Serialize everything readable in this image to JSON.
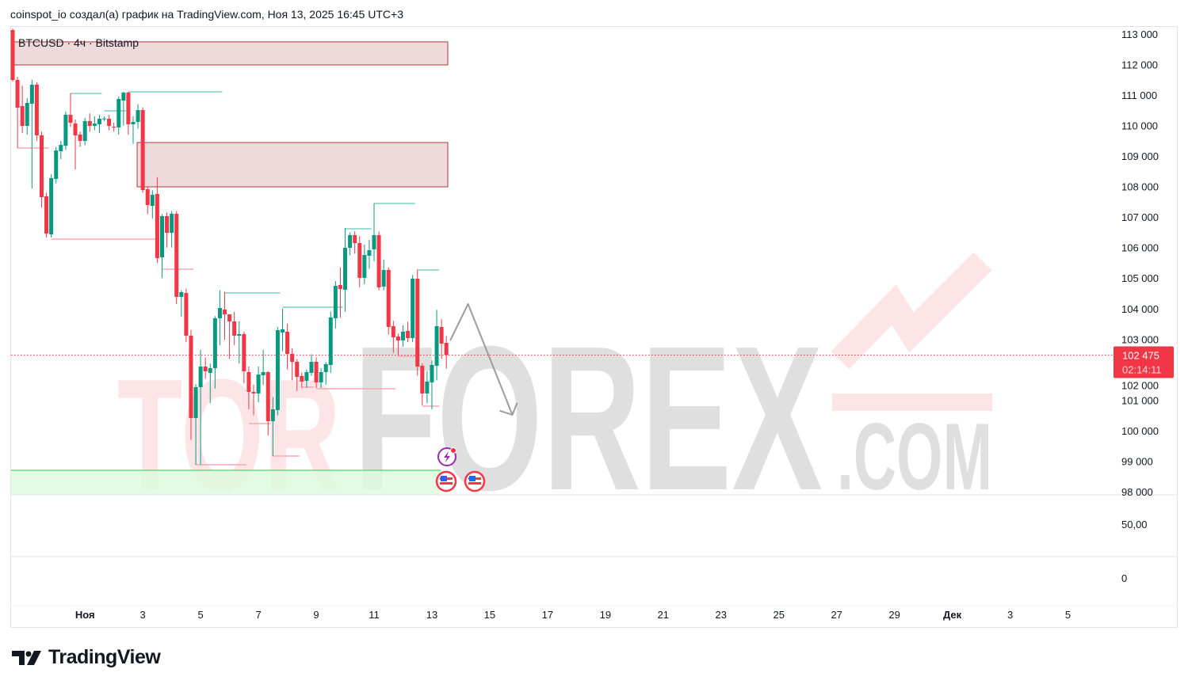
{
  "header": {
    "text": "coinspot_io создал(а) график на TradingView.com, Ноя 13, 2025 16:45 UTC+3"
  },
  "footer": {
    "brand": "TradingView"
  },
  "watermark": {
    "text_left": "TOR",
    "text_right": "FOREX",
    "suffix": ".COM"
  },
  "colors": {
    "up": "#089981",
    "down": "#f23645",
    "zone_fill": "#efdadb",
    "zone_border": "#b2393f",
    "support_line": "#4cd964",
    "support_fill": "#dcfadc",
    "arrow": "#9b9b9b",
    "price_badge": "#f23645"
  },
  "chart_data": {
    "type": "candlestick",
    "title": "BTCUSD · 4ч · Bitstamp",
    "symbol": "BTCUSD",
    "interval": "4ч",
    "exchange": "Bitstamp",
    "ylim": [
      98000,
      113000
    ],
    "y_ticks": [
      "113 000",
      "112 000",
      "111 000",
      "110 000",
      "109 000",
      "108 000",
      "107 000",
      "106 000",
      "105 000",
      "104 000",
      "103 000",
      "102 000",
      "101 000",
      "100 000",
      "99 000",
      "98 000"
    ],
    "x_ticks": [
      {
        "label": "Ноя",
        "bold": true
      },
      {
        "label": "3"
      },
      {
        "label": "5"
      },
      {
        "label": "7"
      },
      {
        "label": "9"
      },
      {
        "label": "11"
      },
      {
        "label": "13"
      },
      {
        "label": "15"
      },
      {
        "label": "17"
      },
      {
        "label": "19"
      },
      {
        "label": "21"
      },
      {
        "label": "23"
      },
      {
        "label": "25"
      },
      {
        "label": "27"
      },
      {
        "label": "29"
      },
      {
        "label": "Дек",
        "bold": true
      },
      {
        "label": "3"
      },
      {
        "label": "5"
      }
    ],
    "last_price": {
      "value": "102 475",
      "countdown": "02:14:11",
      "price": 102475
    },
    "lower_pane_ticks": [
      "50,00",
      "0"
    ],
    "candles_ohlc": [
      [
        113130,
        113180,
        111440,
        111495
      ],
      [
        111495,
        111600,
        109263,
        110586
      ],
      [
        110638,
        111300,
        109756,
        109989
      ],
      [
        109989,
        110900,
        109700,
        110742
      ],
      [
        110716,
        111500,
        107939,
        111339
      ],
      [
        111339,
        111417,
        109500,
        109678
      ],
      [
        109678,
        109800,
        107316,
        107653
      ],
      [
        107679,
        107800,
        106330,
        106460
      ],
      [
        106434,
        108400,
        106330,
        108277
      ],
      [
        108251,
        109300,
        108100,
        109185
      ],
      [
        109159,
        109500,
        108900,
        109367
      ],
      [
        109341,
        110457,
        109200,
        110353
      ],
      [
        110353,
        111054,
        109950,
        110093
      ],
      [
        110067,
        110200,
        108562,
        109678
      ],
      [
        109704,
        109800,
        109300,
        109496
      ],
      [
        109496,
        110250,
        109350,
        110145
      ],
      [
        110145,
        110400,
        109800,
        109989
      ],
      [
        109989,
        110300,
        109850,
        110067
      ],
      [
        110041,
        110350,
        109750,
        110223
      ],
      [
        110223,
        110300,
        110150,
        110230
      ],
      [
        110223,
        110350,
        109850,
        109989
      ],
      [
        109963,
        110100,
        109800,
        109938
      ],
      [
        109938,
        110950,
        109700,
        110872
      ],
      [
        110819,
        111110,
        110000,
        111080
      ],
      [
        111080,
        111110,
        109700,
        110041
      ],
      [
        110041,
        110300,
        109400,
        110119
      ],
      [
        110119,
        110700,
        109900,
        110508
      ],
      [
        110508,
        110600,
        107800,
        107887
      ],
      [
        107913,
        108000,
        107100,
        107394
      ],
      [
        107368,
        107880,
        106950,
        107731
      ],
      [
        107757,
        108310,
        105500,
        105655
      ],
      [
        105681,
        107100,
        105000,
        107031
      ],
      [
        107031,
        107150,
        106000,
        106486
      ],
      [
        106486,
        107200,
        106000,
        107108
      ],
      [
        107108,
        107200,
        104150,
        104384
      ],
      [
        104384,
        104600,
        103730,
        104539
      ],
      [
        104513,
        104650,
        102900,
        103112
      ],
      [
        103112,
        103300,
        99700,
        100412
      ],
      [
        100412,
        101520,
        98880,
        101425
      ],
      [
        101425,
        102650,
        98880,
        102100
      ],
      [
        102100,
        102400,
        101700,
        101944
      ],
      [
        101892,
        102200,
        100900,
        102048
      ],
      [
        102048,
        103750,
        101380,
        103683
      ],
      [
        103683,
        104600,
        102800,
        104020
      ],
      [
        103968,
        104550,
        102980,
        103813
      ],
      [
        103813,
        103750,
        102350,
        103579
      ],
      [
        103579,
        103900,
        102800,
        103112
      ],
      [
        103112,
        103580,
        102200,
        103164
      ],
      [
        103164,
        103250,
        101550,
        101944
      ],
      [
        101918,
        102100,
        100700,
        101269
      ],
      [
        101269,
        101500,
        100500,
        101217
      ],
      [
        101217,
        102100,
        100930,
        101840
      ],
      [
        101814,
        102650,
        101500,
        101918
      ],
      [
        101918,
        101950,
        99840,
        100309
      ],
      [
        100309,
        101100,
        99167,
        100698
      ],
      [
        100672,
        103400,
        100500,
        103293
      ],
      [
        103216,
        104000,
        102600,
        103319
      ],
      [
        103242,
        103500,
        102000,
        102515
      ],
      [
        102515,
        102700,
        101650,
        102255
      ],
      [
        102255,
        102350,
        101300,
        101762
      ],
      [
        101788,
        101900,
        101400,
        101607
      ],
      [
        101632,
        102000,
        101400,
        101918
      ],
      [
        101892,
        102500,
        101800,
        102255
      ],
      [
        102255,
        102400,
        101400,
        101581
      ],
      [
        101581,
        102050,
        101400,
        101918
      ],
      [
        101918,
        102250,
        101500,
        102177
      ],
      [
        102152,
        103900,
        101900,
        103709
      ],
      [
        103683,
        104900,
        103350,
        104747
      ],
      [
        104773,
        105350,
        103700,
        104643
      ],
      [
        104617,
        106640,
        103900,
        105993
      ],
      [
        105993,
        106500,
        105750,
        106408
      ],
      [
        106408,
        106530,
        105800,
        106148
      ],
      [
        106148,
        106380,
        104700,
        105006
      ],
      [
        105006,
        106100,
        104800,
        105759
      ],
      [
        105733,
        106250,
        105300,
        105915
      ],
      [
        105941,
        107450,
        105550,
        106408
      ],
      [
        106408,
        106530,
        104600,
        104695
      ],
      [
        104721,
        105600,
        104600,
        105266
      ],
      [
        105266,
        105350,
        103150,
        103397
      ],
      [
        103423,
        103600,
        102550,
        103060
      ],
      [
        103086,
        103180,
        102450,
        102956
      ],
      [
        102956,
        103450,
        102750,
        103242
      ],
      [
        103268,
        103560,
        102900,
        103034
      ],
      [
        103034,
        105100,
        102900,
        104980
      ],
      [
        104980,
        105280,
        101800,
        102100
      ],
      [
        102126,
        102200,
        100830,
        101217
      ],
      [
        101217,
        101950,
        100900,
        101607
      ],
      [
        101581,
        102300,
        100700,
        102152
      ],
      [
        102126,
        103960,
        101650,
        103423
      ],
      [
        103397,
        103650,
        102350,
        102852
      ],
      [
        102878,
        103100,
        102030,
        102475
      ]
    ],
    "zones": [
      {
        "top": 112743,
        "bottom": 111988,
        "from_candle": 0
      },
      {
        "top": 109444,
        "bottom": 107991,
        "from_candle": 26
      }
    ],
    "support_zone": {
      "top": 98700,
      "bottom": 97900
    },
    "swing_highs": [
      {
        "price": 111054,
        "from": 12,
        "to": 18
      },
      {
        "price": 110483,
        "from": 19,
        "to": 23
      },
      {
        "price": 111105,
        "from": 24,
        "to": 43
      },
      {
        "price": 104513,
        "from": 44,
        "to": 55
      },
      {
        "price": 104046,
        "from": 56,
        "to": 68
      },
      {
        "price": 106616,
        "from": 69,
        "to": 74
      },
      {
        "price": 107446,
        "from": 75,
        "to": 83
      },
      {
        "price": 105266,
        "from": 84,
        "to": 88
      }
    ],
    "swing_lows": [
      {
        "price": 109263,
        "from": 1,
        "to": 7
      },
      {
        "price": 106278,
        "from": 8,
        "to": 30
      },
      {
        "price": 105292,
        "from": 31,
        "to": 37
      },
      {
        "price": 98882,
        "from": 38,
        "to": 48
      },
      {
        "price": 100231,
        "from": 49,
        "to": 53
      },
      {
        "price": 99167,
        "from": 54,
        "to": 59
      },
      {
        "price": 101425,
        "from": 60,
        "to": 62
      },
      {
        "price": 101373,
        "from": 63,
        "to": 79
      },
      {
        "price": 102437,
        "from": 80,
        "to": 84
      },
      {
        "price": 100802,
        "from": 85,
        "to": 88
      }
    ],
    "forecast_arrow": [
      {
        "candle": 90.8,
        "price": 102950
      },
      {
        "candle": 94.5,
        "price": 104150
      },
      {
        "candle": 103.7,
        "price": 100520
      }
    ],
    "event_icons": [
      {
        "type": "lightning-event"
      },
      {
        "type": "us-flag-event"
      },
      {
        "type": "us-flag-event"
      }
    ]
  }
}
